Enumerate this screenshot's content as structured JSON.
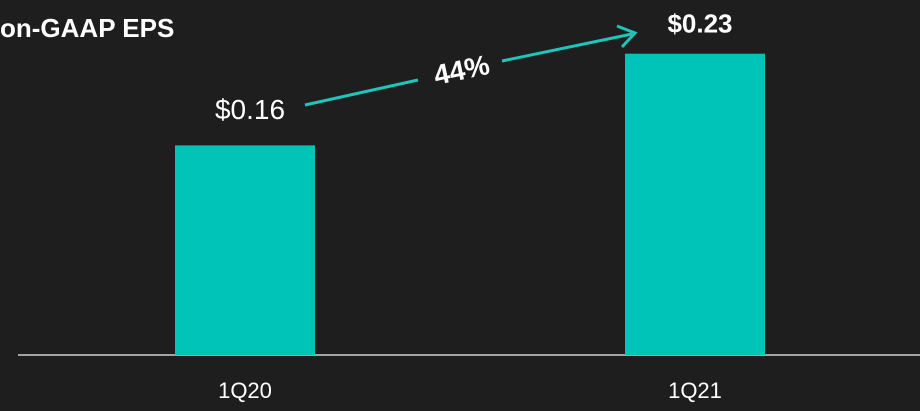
{
  "chart_data": {
    "type": "bar",
    "title": "on-GAAP EPS",
    "categories": [
      "1Q20",
      "1Q21"
    ],
    "values": [
      0.16,
      0.23
    ],
    "value_labels": [
      "$0.16",
      "$0.23"
    ],
    "color": "#00c4b8",
    "annotation": "44%"
  }
}
